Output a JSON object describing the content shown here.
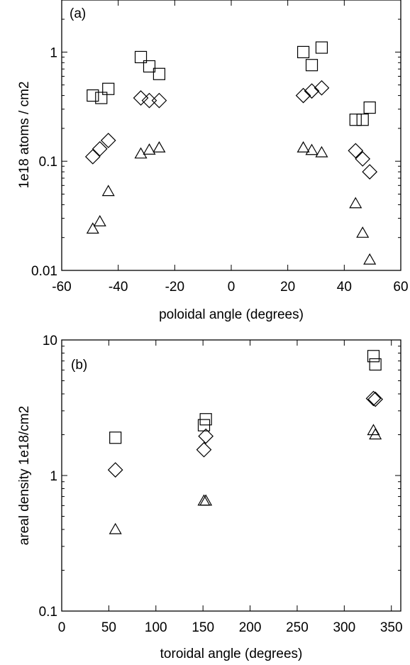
{
  "chart_data": [
    {
      "type": "scatter",
      "panel_label": "(a)",
      "xlabel": "poloidal angle (degrees)",
      "ylabel": "1e18 atoms / cm2",
      "xlim": [
        -60,
        60
      ],
      "ylim": [
        0.01,
        3
      ],
      "yscale": "log",
      "xticks": [
        -60,
        -40,
        -20,
        0,
        20,
        40,
        60
      ],
      "yticks": [
        0.01,
        0.1,
        1
      ],
      "ytick_labels": [
        "0.01",
        "0.1",
        "1"
      ],
      "grid": false,
      "series": [
        {
          "marker": "square",
          "points": [
            [
              -49,
              0.4
            ],
            [
              -46,
              0.38
            ],
            [
              -43.5,
              0.46
            ],
            [
              -32,
              0.9
            ],
            [
              -29,
              0.74
            ],
            [
              -25.5,
              0.63
            ],
            [
              25.5,
              1.0
            ],
            [
              28.5,
              0.76
            ],
            [
              32,
              1.1
            ],
            [
              44,
              0.24
            ],
            [
              46.5,
              0.24
            ],
            [
              49,
              0.31
            ]
          ]
        },
        {
          "marker": "diamond",
          "points": [
            [
              -49,
              0.11
            ],
            [
              -46.5,
              0.13
            ],
            [
              -43.5,
              0.155
            ],
            [
              -32,
              0.38
            ],
            [
              -29,
              0.36
            ],
            [
              -25.5,
              0.36
            ],
            [
              25.5,
              0.4
            ],
            [
              28.5,
              0.44
            ],
            [
              32,
              0.47
            ],
            [
              44,
              0.125
            ],
            [
              46.5,
              0.105
            ],
            [
              49,
              0.08
            ]
          ]
        },
        {
          "marker": "triangle",
          "points": [
            [
              -49,
              0.024
            ],
            [
              -46.5,
              0.028
            ],
            [
              -43.5,
              0.053
            ],
            [
              -32,
              0.117
            ],
            [
              -29,
              0.127
            ],
            [
              -25.5,
              0.133
            ],
            [
              25.5,
              0.133
            ],
            [
              28.5,
              0.126
            ],
            [
              32,
              0.12
            ],
            [
              44,
              0.041
            ],
            [
              46.5,
              0.022
            ],
            [
              49,
              0.0125
            ]
          ]
        }
      ]
    },
    {
      "type": "scatter",
      "panel_label": "(b)",
      "xlabel": "toroidal angle (degrees)",
      "ylabel": "areal density 1e18/cm2",
      "xlim": [
        0,
        360
      ],
      "ylim": [
        0.1,
        10
      ],
      "yscale": "log",
      "xticks": [
        0,
        50,
        100,
        150,
        200,
        250,
        300,
        350
      ],
      "yticks": [
        0.1,
        1,
        10
      ],
      "ytick_labels": [
        "0.1",
        "1",
        "10"
      ],
      "grid": false,
      "series": [
        {
          "marker": "square",
          "points": [
            [
              57,
              1.9
            ],
            [
              151,
              2.35
            ],
            [
              153,
              2.6
            ],
            [
              331,
              7.6
            ],
            [
              333,
              6.6
            ]
          ]
        },
        {
          "marker": "diamond",
          "points": [
            [
              57,
              1.1
            ],
            [
              151,
              1.55
            ],
            [
              153,
              1.95
            ],
            [
              331,
              3.7
            ],
            [
              333,
              3.65
            ]
          ]
        },
        {
          "marker": "triangle",
          "points": [
            [
              57,
              0.4
            ],
            [
              151,
              0.65
            ],
            [
              153,
              0.65
            ],
            [
              331,
              2.15
            ],
            [
              333,
              2.0
            ]
          ]
        }
      ]
    }
  ]
}
